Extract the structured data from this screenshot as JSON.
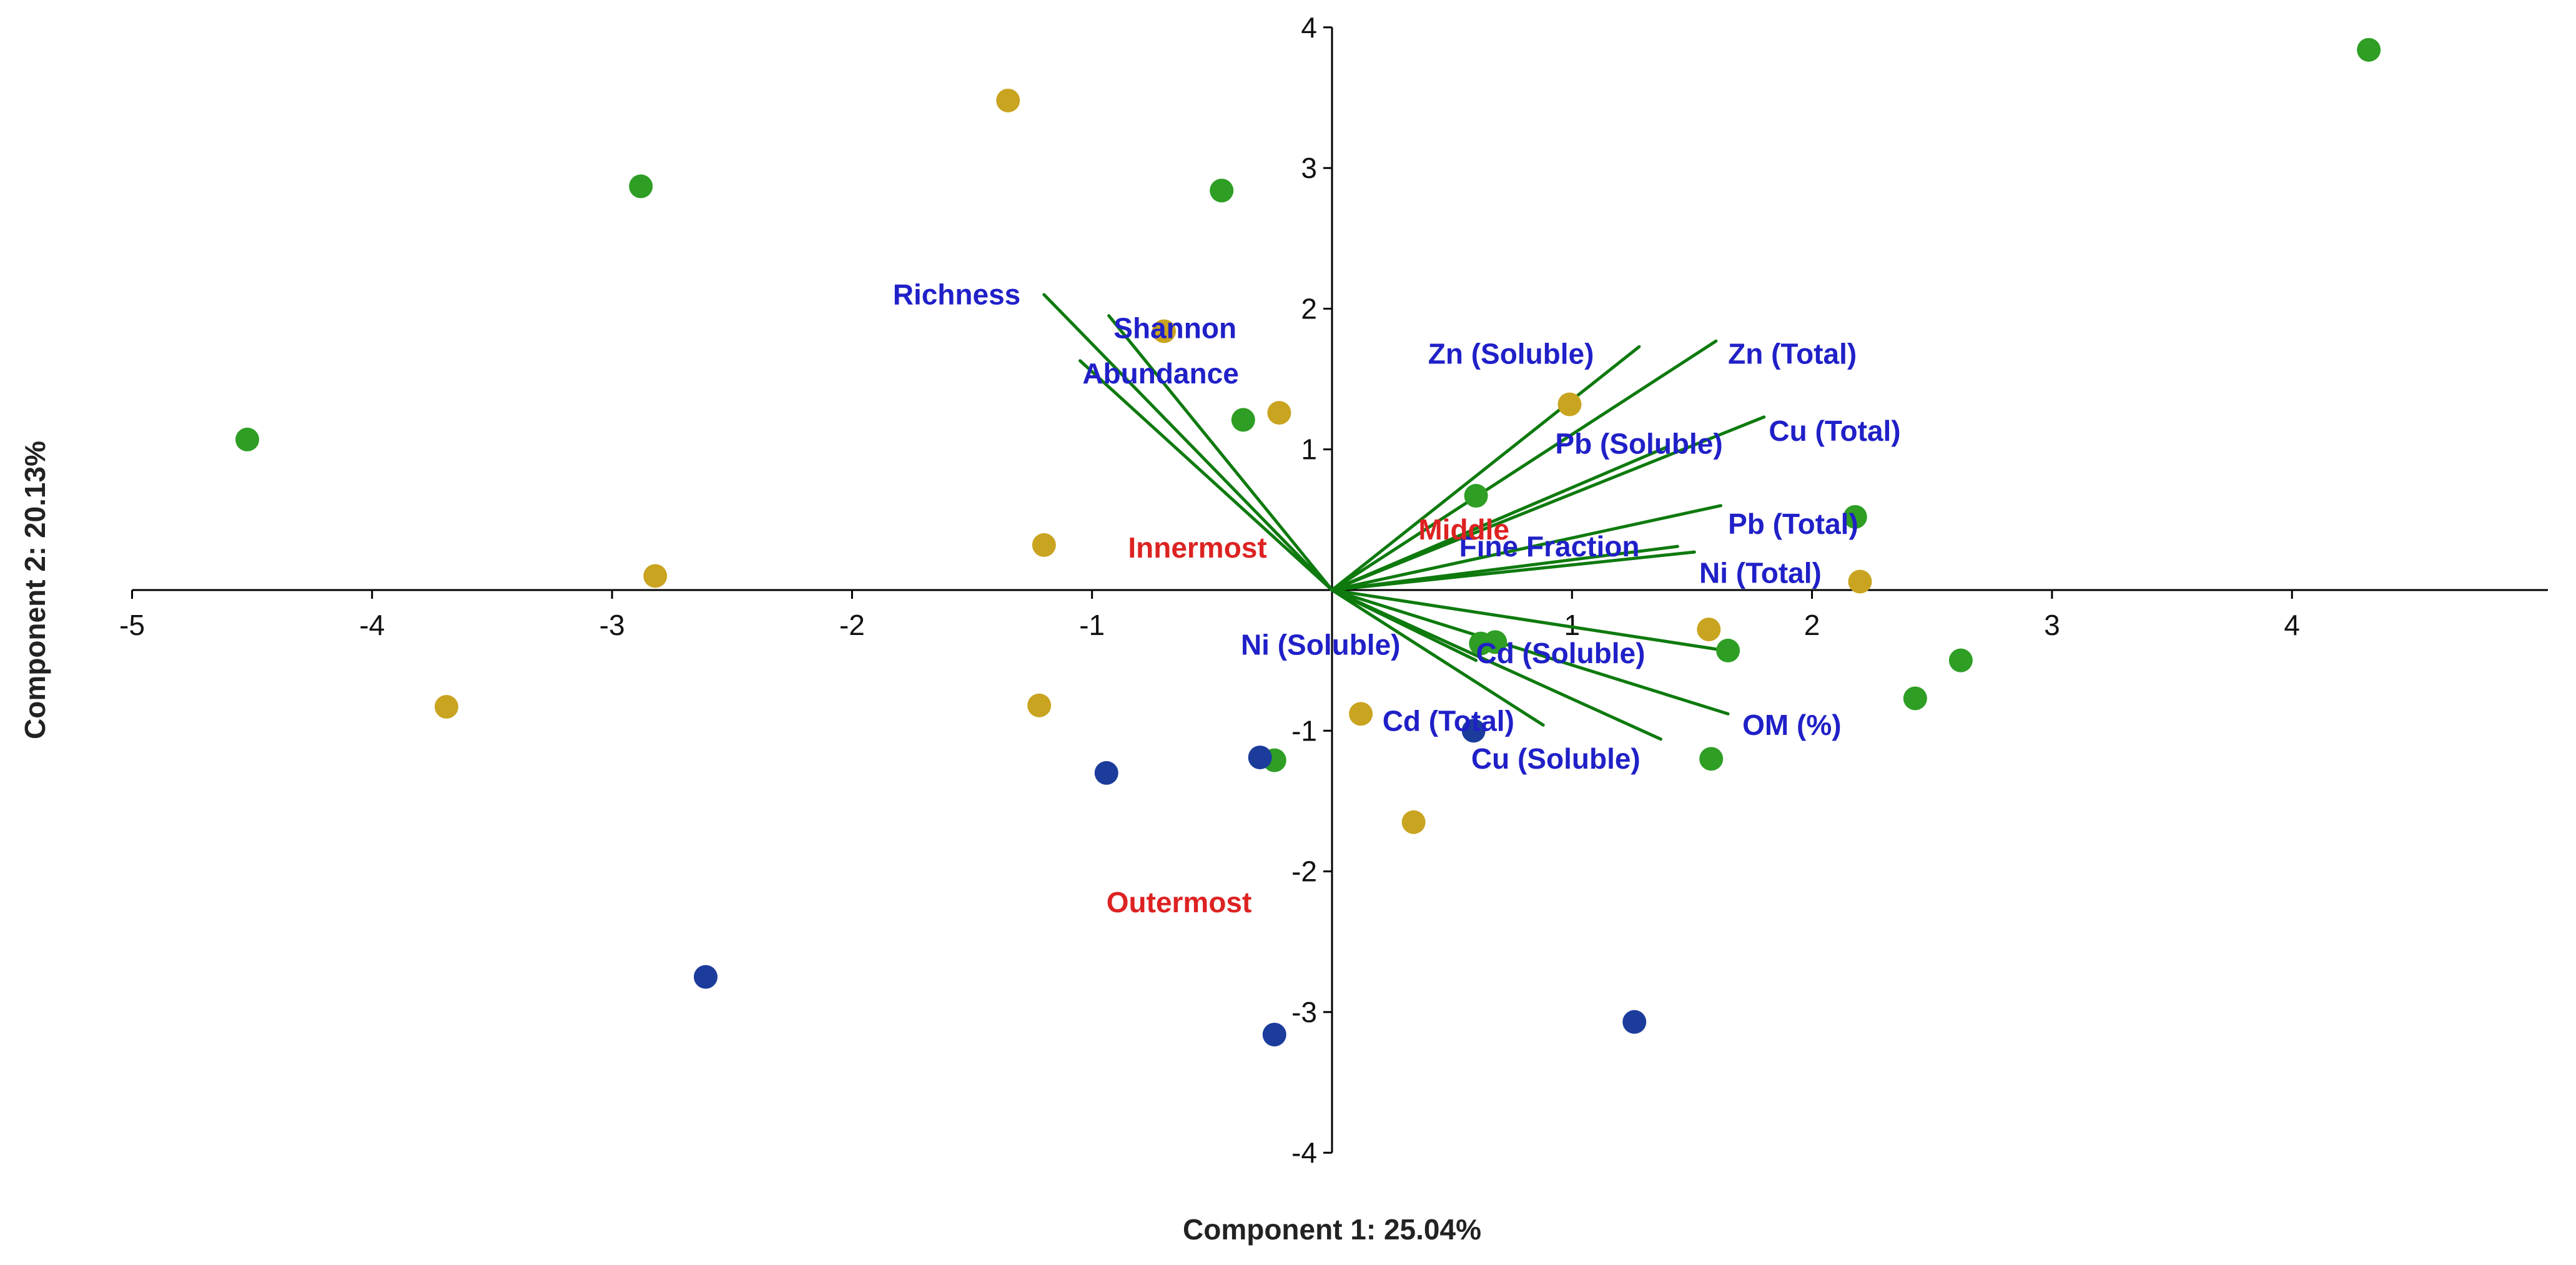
{
  "chart_data": {
    "type": "scatter",
    "title": "",
    "xlabel": "Component 1:  25.04%",
    "ylabel": "Component 2:  20.13%",
    "xlim": [
      -5,
      5
    ],
    "ylim": [
      -4,
      4
    ],
    "xticks": [
      -5,
      -4,
      -3,
      -2,
      -1,
      1,
      2,
      3,
      4
    ],
    "yticks": [
      -4,
      -3,
      -2,
      -1,
      1,
      2,
      3,
      4
    ],
    "colors": {
      "green": "#2e9e24",
      "gold": "#c9a420",
      "blue": "#1c3c9c",
      "vector": "#0e7a0e",
      "var_label": "#2020c8",
      "group_label": "#dd2222",
      "axis": "#000000"
    },
    "series": [
      {
        "name": "green",
        "color": "#2e9e24",
        "points": [
          [
            -4.52,
            1.07
          ],
          [
            -2.88,
            2.87
          ],
          [
            -0.46,
            2.84
          ],
          [
            -0.37,
            1.21
          ],
          [
            0.6,
            0.67
          ],
          [
            0.62,
            -0.38
          ],
          [
            0.68,
            -0.37
          ],
          [
            1.65,
            -0.43
          ],
          [
            2.18,
            0.52
          ],
          [
            2.62,
            -0.5
          ],
          [
            2.43,
            -0.77
          ],
          [
            1.58,
            -1.2
          ],
          [
            -0.24,
            -1.21
          ],
          [
            4.32,
            3.84
          ]
        ]
      },
      {
        "name": "gold",
        "color": "#c9a420",
        "points": [
          [
            -1.35,
            3.48
          ],
          [
            -0.7,
            1.84
          ],
          [
            -0.22,
            1.26
          ],
          [
            0.99,
            1.32
          ],
          [
            -1.2,
            0.32
          ],
          [
            -2.82,
            0.1
          ],
          [
            -3.69,
            -0.83
          ],
          [
            -1.22,
            -0.82
          ],
          [
            0.12,
            -0.88
          ],
          [
            0.34,
            -1.65
          ],
          [
            1.57,
            -0.28
          ],
          [
            2.2,
            0.06
          ]
        ]
      },
      {
        "name": "blue",
        "color": "#1c3c9c",
        "points": [
          [
            -0.94,
            -1.3
          ],
          [
            -0.3,
            -1.19
          ],
          [
            0.59,
            -1.0
          ],
          [
            -2.61,
            -2.75
          ],
          [
            -0.24,
            -3.16
          ],
          [
            1.26,
            -3.07
          ]
        ]
      }
    ],
    "vectors": [
      {
        "name": "Richness",
        "end": [
          -1.2,
          2.1
        ]
      },
      {
        "name": "Shannon",
        "end": [
          -0.93,
          1.95
        ]
      },
      {
        "name": "Abundance",
        "end": [
          -1.05,
          1.63
        ]
      },
      {
        "name": "Zn (Soluble)",
        "end": [
          1.28,
          1.73
        ]
      },
      {
        "name": "Zn (Total)",
        "end": [
          1.6,
          1.77
        ]
      },
      {
        "name": "Cu (Total)",
        "end": [
          1.8,
          1.23
        ]
      },
      {
        "name": "Pb (Soluble)",
        "end": [
          1.4,
          1.02
        ]
      },
      {
        "name": "Pb (Total)",
        "end": [
          1.62,
          0.6
        ]
      },
      {
        "name": "Fine Fraction",
        "end": [
          1.44,
          0.31
        ]
      },
      {
        "name": "Ni (Total)",
        "end": [
          1.51,
          0.27
        ]
      },
      {
        "name": "Cd (Soluble)",
        "end": [
          1.6,
          -0.42
        ]
      },
      {
        "name": "OM (%)",
        "end": [
          1.65,
          -0.88
        ]
      },
      {
        "name": "Cu (Soluble)",
        "end": [
          1.37,
          -1.06
        ]
      },
      {
        "name": "Cd (Total)",
        "end": [
          0.88,
          -0.96
        ]
      },
      {
        "name": "Ni (Soluble)",
        "end": [
          0.6,
          -0.5
        ]
      }
    ],
    "variable_labels": [
      {
        "text": "Richness",
        "pos": [
          -1.83,
          2.03
        ]
      },
      {
        "text": "Shannon",
        "pos": [
          -0.91,
          1.79
        ]
      },
      {
        "text": "Abundance",
        "pos": [
          -1.04,
          1.47
        ]
      },
      {
        "text": "Zn (Soluble)",
        "pos": [
          0.4,
          1.61
        ]
      },
      {
        "text": "Zn (Total)",
        "pos": [
          1.65,
          1.61
        ]
      },
      {
        "text": "Cu (Total)",
        "pos": [
          1.82,
          1.06
        ]
      },
      {
        "text": "Pb (Soluble)",
        "pos": [
          0.93,
          0.97
        ]
      },
      {
        "text": "Pb (Total)",
        "pos": [
          1.65,
          0.4
        ]
      },
      {
        "text": "Fine Fraction",
        "pos": [
          0.53,
          0.24
        ]
      },
      {
        "text": "Ni (Total)",
        "pos": [
          1.53,
          0.05
        ]
      },
      {
        "text": "Cd (Soluble)",
        "pos": [
          0.6,
          -0.52
        ]
      },
      {
        "text": "Cu (Soluble)",
        "pos": [
          0.58,
          -1.27
        ]
      },
      {
        "text": "Cd (Total)",
        "pos": [
          0.21,
          -1.0
        ]
      },
      {
        "text": "Ni (Soluble)",
        "pos": [
          -0.38,
          -0.46
        ]
      },
      {
        "text": "OM (%)",
        "pos": [
          1.71,
          -1.03
        ]
      }
    ],
    "group_labels": [
      {
        "text": "Innermost",
        "pos": [
          -0.85,
          0.23
        ]
      },
      {
        "text": "Middle",
        "pos": [
          0.36,
          0.36
        ]
      },
      {
        "text": "Outermost",
        "pos": [
          -0.94,
          -2.29
        ]
      }
    ]
  }
}
